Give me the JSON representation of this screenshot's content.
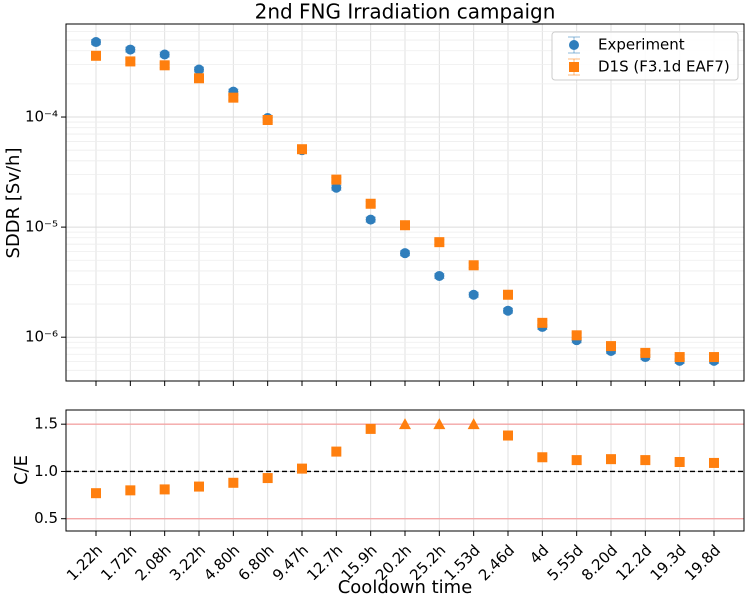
{
  "chart_data": [
    {
      "type": "scatter",
      "title": "2nd FNG Irradiation campaign",
      "ylabel": "SDDR [Sv/h]",
      "log_y": true,
      "grid": true,
      "minor_grid": true,
      "legend": "upper right",
      "ylim": [
        4e-07,
        0.0007
      ],
      "yticks": [
        {
          "value": 1e-06,
          "label": "10⁻⁶"
        },
        {
          "value": 1e-05,
          "label": "10⁻⁵"
        },
        {
          "value": 0.0001,
          "label": "10⁻⁴"
        }
      ],
      "series": [
        {
          "name": "Experiment",
          "color": "#2f7ebc",
          "marker": "circle",
          "rel_error": 0.05,
          "values": [
            0.00048,
            0.00041,
            0.00037,
            0.00027,
            0.00017,
            9.8e-05,
            5e-05,
            2.28e-05,
            1.17e-05,
            5.8e-06,
            3.6e-06,
            2.43e-06,
            1.74e-06,
            1.24e-06,
            9.4e-07,
            7.5e-07,
            6.6e-07,
            6.1e-07,
            6.1e-07
          ]
        },
        {
          "name": "D1S (F3.1d EAF7)",
          "color": "#ff7f0e",
          "marker": "square",
          "rel_error": 0.05,
          "values": [
            0.00036,
            0.00032,
            0.000295,
            0.000225,
            0.00015,
            9.4e-05,
            5.1e-05,
            2.7e-05,
            1.63e-05,
            1.04e-05,
            7.3e-06,
            4.5e-06,
            2.43e-06,
            1.35e-06,
            1.04e-06,
            8.3e-07,
            7.2e-07,
            6.6e-07,
            6.6e-07
          ]
        }
      ]
    },
    {
      "type": "scatter",
      "ylabel": "C/E",
      "xlabel": "Cooldown time",
      "grid": true,
      "categories": [
        "1.22h",
        "1.72h",
        "2.08h",
        "3.22h",
        "4.80h",
        "6.80h",
        "9.47h",
        "12.7h",
        "15.9h",
        "20.2h",
        "25.2h",
        "1.53d",
        "2.46d",
        "4d",
        "5.55d",
        "8.20d",
        "12.2d",
        "19.3d",
        "19.8d"
      ],
      "ylim": [
        0.37,
        1.65
      ],
      "yticks": [
        0.5,
        {
          "value": 1,
          "label": "1.0"
        },
        1.5
      ],
      "reference_lines": [
        {
          "value": 0.5,
          "color": "#f4a6a6",
          "style": "solid"
        },
        {
          "value": 1,
          "color": "#000000",
          "style": "dashed"
        },
        {
          "value": 1.5,
          "color": "#f4a6a6",
          "style": "solid"
        }
      ],
      "series": [
        {
          "name": "C/E",
          "color": "#ff7f0e",
          "markers": [
            "square",
            "square",
            "square",
            "square",
            "square",
            "square",
            "square",
            "square",
            "square",
            "triangle",
            "triangle",
            "triangle",
            "square",
            "square",
            "square",
            "square",
            "square",
            "square",
            "square"
          ],
          "values": [
            0.77,
            0.8,
            0.81,
            0.84,
            0.88,
            0.93,
            1.03,
            1.21,
            1.45,
            1.5,
            1.5,
            1.5,
            1.38,
            1.15,
            1.12,
            1.13,
            1.12,
            1.1,
            1.09
          ]
        }
      ]
    }
  ]
}
